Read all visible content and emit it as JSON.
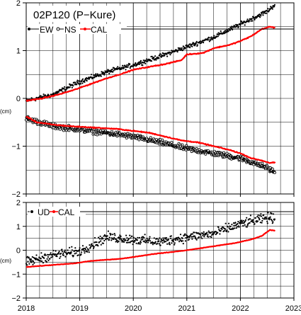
{
  "chart_data": [
    {
      "type": "scatter",
      "title": "02P120 (P−Kure)",
      "xlabel": "",
      "ylabel": "(cm)",
      "xlim": [
        2018,
        2023
      ],
      "ylim": [
        -2,
        2
      ],
      "x_ticks": [
        "2018",
        "2019",
        "2020",
        "2021",
        "2022",
        "2023"
      ],
      "y_ticks": [
        {
          "value": 2,
          "label": "2"
        },
        {
          "value": 1,
          "label": "1"
        },
        {
          "value": 0,
          "label": "0"
        },
        {
          "value": -1,
          "label": "−1"
        },
        {
          "value": -2,
          "label": "−2"
        }
      ],
      "grid": true,
      "legend": "top-left",
      "series": [
        {
          "name": "EW",
          "marker": "dot",
          "color": "#000000",
          "trend": [
            [
              2018.0,
              -0.05
            ],
            [
              2018.5,
              0.08
            ],
            [
              2019.0,
              0.35
            ],
            [
              2019.5,
              0.55
            ],
            [
              2020.0,
              0.7
            ],
            [
              2020.5,
              0.88
            ],
            [
              2021.0,
              1.08
            ],
            [
              2021.5,
              1.28
            ],
            [
              2022.0,
              1.55
            ],
            [
              2022.5,
              1.82
            ],
            [
              2022.65,
              1.97
            ]
          ],
          "scatter_amplitude": 0.07
        },
        {
          "name": "NS",
          "marker": "open-circle",
          "color": "#000000",
          "trend": [
            [
              2018.0,
              -0.42
            ],
            [
              2018.5,
              -0.58
            ],
            [
              2019.0,
              -0.65
            ],
            [
              2019.5,
              -0.72
            ],
            [
              2020.0,
              -0.8
            ],
            [
              2020.5,
              -0.92
            ],
            [
              2021.0,
              -1.05
            ],
            [
              2021.5,
              -1.15
            ],
            [
              2022.0,
              -1.25
            ],
            [
              2022.5,
              -1.45
            ],
            [
              2022.65,
              -1.55
            ]
          ],
          "scatter_amplitude": 0.08
        },
        {
          "name": "CAL",
          "marker": "dot-line",
          "color": "#ff0000",
          "values": [
            [
              2018.0,
              -0.05
            ],
            [
              2018.3,
              0.0
            ],
            [
              2018.6,
              0.08
            ],
            [
              2018.9,
              0.18
            ],
            [
              2019.2,
              0.3
            ],
            [
              2019.5,
              0.42
            ],
            [
              2019.8,
              0.52
            ],
            [
              2020.0,
              0.6
            ],
            [
              2020.3,
              0.66
            ],
            [
              2020.6,
              0.72
            ],
            [
              2020.9,
              0.8
            ],
            [
              2021.0,
              0.92
            ],
            [
              2021.3,
              0.95
            ],
            [
              2021.5,
              1.05
            ],
            [
              2021.8,
              1.12
            ],
            [
              2022.0,
              1.2
            ],
            [
              2022.2,
              1.3
            ],
            [
              2022.4,
              1.45
            ],
            [
              2022.55,
              1.5
            ],
            [
              2022.65,
              1.48
            ]
          ]
        },
        {
          "name": "CAL",
          "marker": "dot-line",
          "color": "#ff0000",
          "values": [
            [
              2018.0,
              -0.38
            ],
            [
              2018.2,
              -0.5
            ],
            [
              2018.5,
              -0.55
            ],
            [
              2018.8,
              -0.58
            ],
            [
              2019.1,
              -0.6
            ],
            [
              2019.4,
              -0.62
            ],
            [
              2019.7,
              -0.64
            ],
            [
              2020.0,
              -0.68
            ],
            [
              2020.3,
              -0.72
            ],
            [
              2020.6,
              -0.8
            ],
            [
              2020.9,
              -0.88
            ],
            [
              2021.2,
              -0.92
            ],
            [
              2021.5,
              -1.0
            ],
            [
              2021.8,
              -1.08
            ],
            [
              2022.0,
              -1.15
            ],
            [
              2022.2,
              -1.25
            ],
            [
              2022.4,
              -1.3
            ],
            [
              2022.55,
              -1.35
            ],
            [
              2022.65,
              -1.34
            ]
          ]
        }
      ]
    },
    {
      "type": "scatter",
      "title": "",
      "xlabel": "",
      "ylabel": "(cm)",
      "xlim": [
        2018,
        2023
      ],
      "ylim": [
        -2,
        2
      ],
      "x_ticks": [
        "2018",
        "2019",
        "2020",
        "2021",
        "2022",
        "2023"
      ],
      "y_ticks": [
        {
          "value": 2,
          "label": "2"
        },
        {
          "value": 1,
          "label": "1"
        },
        {
          "value": 0,
          "label": "0"
        },
        {
          "value": -1,
          "label": "−1"
        },
        {
          "value": -2,
          "label": "−2"
        }
      ],
      "grid": true,
      "legend": "top-left",
      "series": [
        {
          "name": "UD",
          "marker": "dot",
          "color": "#000000",
          "trend": [
            [
              2018.0,
              -0.5
            ],
            [
              2018.5,
              -0.2
            ],
            [
              2019.0,
              -0.05
            ],
            [
              2019.5,
              0.55
            ],
            [
              2020.0,
              0.45
            ],
            [
              2020.5,
              0.35
            ],
            [
              2021.0,
              0.55
            ],
            [
              2021.5,
              0.7
            ],
            [
              2022.0,
              1.1
            ],
            [
              2022.5,
              1.35
            ],
            [
              2022.65,
              1.35
            ]
          ],
          "scatter_amplitude": 0.3
        },
        {
          "name": "CAL",
          "marker": "dot-line",
          "color": "#ff0000",
          "values": [
            [
              2018.0,
              -0.7
            ],
            [
              2018.3,
              -0.65
            ],
            [
              2018.6,
              -0.6
            ],
            [
              2018.9,
              -0.55
            ],
            [
              2019.2,
              -0.45
            ],
            [
              2019.5,
              -0.4
            ],
            [
              2019.8,
              -0.35
            ],
            [
              2020.1,
              -0.25
            ],
            [
              2020.4,
              -0.15
            ],
            [
              2020.7,
              -0.08
            ],
            [
              2021.0,
              0.0
            ],
            [
              2021.3,
              0.1
            ],
            [
              2021.6,
              0.2
            ],
            [
              2021.9,
              0.3
            ],
            [
              2022.2,
              0.45
            ],
            [
              2022.4,
              0.6
            ],
            [
              2022.55,
              0.85
            ],
            [
              2022.65,
              0.82
            ]
          ]
        }
      ]
    }
  ]
}
